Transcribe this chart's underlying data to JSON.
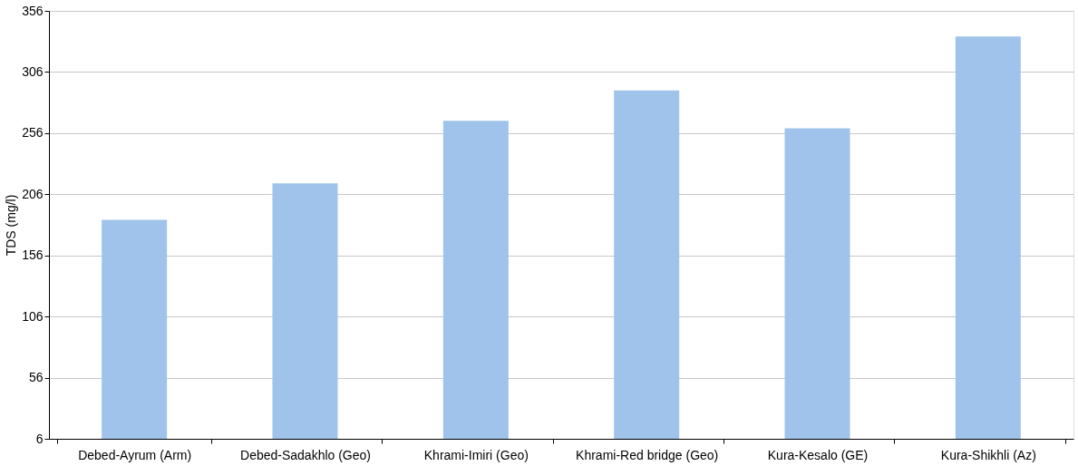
{
  "chart_data": {
    "type": "bar",
    "ylabel": "TDS (mg/l)",
    "categories": [
      "Debed-Ayrum (Arm)",
      "Debed-Sadakhlo (Geo)",
      "Khrami-Imiri (Geo)",
      "Khrami-Red bridge (Geo)",
      "Kura-Kesalo (GE)",
      "Kura-Shikhli (Az)"
    ],
    "values": [
      185,
      215,
      266,
      291,
      260,
      335
    ],
    "color": "#9fc3ea",
    "ylim": [
      6,
      356
    ],
    "yticks": [
      6,
      56,
      106,
      156,
      206,
      256,
      306,
      356
    ],
    "grid": "y"
  }
}
